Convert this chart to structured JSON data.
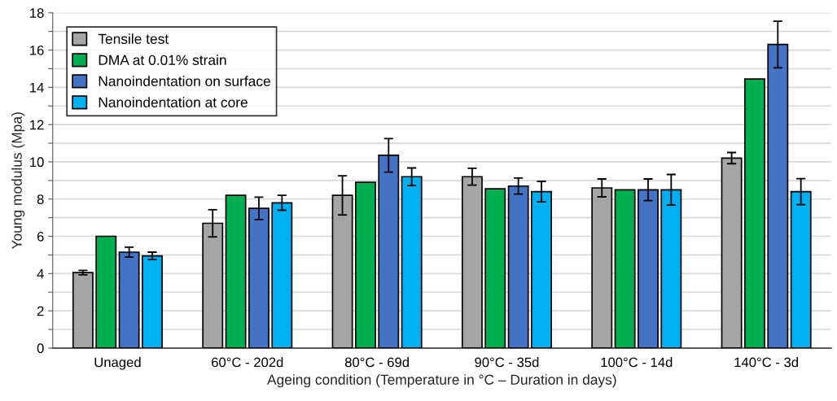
{
  "chart_data": {
    "type": "bar",
    "xlabel": "Ageing condition (Temperature in °C – Duration in days)",
    "ylabel": "Young modulus (Mpa)",
    "categories": [
      "Unaged",
      "60°C - 202d",
      "80°C - 69d",
      "90°C - 35d",
      "100°C - 14d",
      "140°C - 3d"
    ],
    "series": [
      {
        "name": "Tensile test",
        "color": "#a5a5a5",
        "values": [
          4.05,
          6.7,
          8.2,
          9.2,
          8.6,
          10.2
        ],
        "errors": [
          0.12,
          0.73,
          1.05,
          0.45,
          0.48,
          0.3
        ]
      },
      {
        "name": "DMA at 0.01% strain",
        "color": "#00b050",
        "values": [
          6.0,
          8.2,
          8.9,
          8.55,
          8.5,
          14.45
        ],
        "errors": [
          null,
          null,
          null,
          null,
          null,
          null
        ]
      },
      {
        "name": "Nanoindentation on surface",
        "color": "#4472c4",
        "values": [
          5.15,
          7.5,
          10.35,
          8.7,
          8.5,
          16.3
        ],
        "errors": [
          0.27,
          0.6,
          0.9,
          0.43,
          0.58,
          1.25
        ]
      },
      {
        "name": "Nanoindentation at core",
        "color": "#00b0f0",
        "values": [
          4.95,
          7.8,
          9.2,
          8.4,
          8.5,
          8.4
        ],
        "errors": [
          0.2,
          0.4,
          0.47,
          0.55,
          0.82,
          0.7
        ]
      }
    ],
    "ylim": [
      0,
      18
    ],
    "yticks": [
      0,
      {
        "value": 1,
        "label": null
      },
      2,
      {
        "value": 3,
        "label": null
      },
      4,
      {
        "value": 5,
        "label": null
      },
      6,
      {
        "value": 7,
        "label": null
      },
      8,
      {
        "value": 9,
        "label": null
      },
      10,
      {
        "value": 11,
        "label": null
      },
      12,
      {
        "value": 13,
        "label": null
      },
      14,
      {
        "value": 15,
        "label": null
      },
      16,
      {
        "value": 17,
        "label": null
      },
      18
    ],
    "grid": "y",
    "legend": "top left"
  }
}
